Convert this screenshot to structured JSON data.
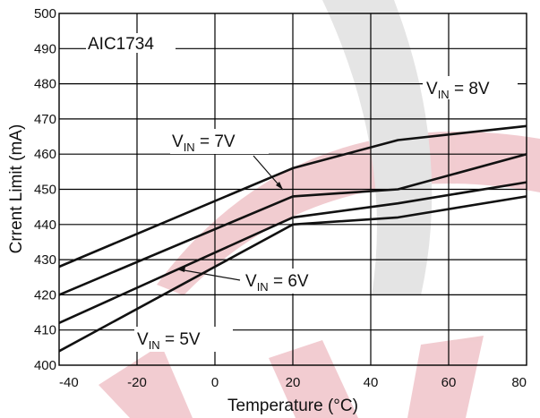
{
  "chart_data": {
    "type": "line",
    "title": "AIC1734",
    "xlabel": "Temperature (°C)",
    "ylabel": "Crrent Limit (mA)",
    "xlim": [
      -40,
      80
    ],
    "ylim": [
      400,
      500
    ],
    "x_ticks": [
      -40,
      -20,
      0,
      20,
      40,
      60,
      80
    ],
    "y_ticks": [
      400,
      410,
      420,
      430,
      440,
      450,
      460,
      470,
      480,
      490,
      500
    ],
    "x_tick_labels": [
      "-40",
      "-20",
      "0",
      "20",
      "40",
      "60",
      "80"
    ],
    "y_tick_labels": [
      "400",
      "410",
      "420",
      "430",
      "440",
      "450",
      "460",
      "470",
      "480",
      "490",
      "500"
    ],
    "grid": true,
    "series": [
      {
        "name": "VIN = 8V",
        "color": "#111111",
        "x": [
          -40,
          20,
          47,
          80
        ],
        "y": [
          428,
          456,
          464,
          468
        ]
      },
      {
        "name": "VIN = 7V",
        "color": "#111111",
        "x": [
          -40,
          20,
          47,
          80
        ],
        "y": [
          420,
          448,
          450,
          460
        ]
      },
      {
        "name": "VIN = 6V",
        "color": "#111111",
        "x": [
          -40,
          20,
          47,
          80
        ],
        "y": [
          412,
          442,
          446,
          452
        ]
      },
      {
        "name": "VIN = 5V",
        "color": "#111111",
        "x": [
          -40,
          20,
          47,
          80
        ],
        "y": [
          404,
          440,
          442,
          448
        ]
      }
    ],
    "annotations": [
      {
        "main": "V",
        "sub": "IN",
        "rest": " = 8V"
      },
      {
        "main": "V",
        "sub": "IN",
        "rest": " = 7V"
      },
      {
        "main": "V",
        "sub": "IN",
        "rest": " = 6V"
      },
      {
        "main": "V",
        "sub": "IN",
        "rest": " = 5V"
      }
    ]
  },
  "colors": {
    "background": "#ffffff",
    "line": "#111111",
    "watermark_red": "#e8a0a8",
    "watermark_gray": "#c8c8c8"
  }
}
